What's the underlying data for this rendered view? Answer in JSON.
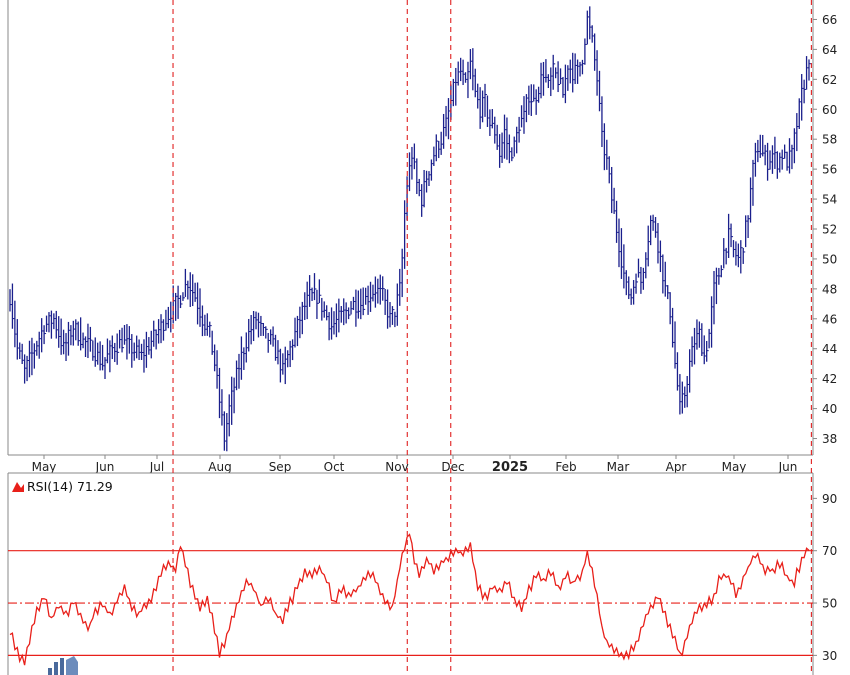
{
  "colors": {
    "price": "#1a1f8c",
    "rsi": "#e8201a",
    "marker": "#e02020",
    "frame": "#888888",
    "text": "#222222"
  },
  "chart_data": [
    {
      "type": "bar",
      "subtype": "ohlc-price",
      "y_ticks": [
        38,
        40,
        42,
        44,
        46,
        48,
        50,
        52,
        54,
        56,
        58,
        60,
        62,
        64,
        66
      ],
      "x_ticks": [
        "May",
        "Jun",
        "Jul",
        "Aug",
        "Sep",
        "Oct",
        "Nov",
        "Dec",
        "2025",
        "Feb",
        "Mar",
        "Apr",
        "May",
        "Jun"
      ],
      "x_ticks_bold": [
        false,
        false,
        false,
        false,
        false,
        false,
        false,
        false,
        true,
        false,
        false,
        false,
        false,
        false
      ],
      "ylim": [
        36.9,
        67.3
      ],
      "keypoints": [
        [
          0,
          47.5
        ],
        [
          3,
          44
        ],
        [
          6,
          42.5
        ],
        [
          10,
          44
        ],
        [
          14,
          45.5
        ],
        [
          18,
          46
        ],
        [
          22,
          44
        ],
        [
          26,
          45.5
        ],
        [
          30,
          44.5
        ],
        [
          34,
          44
        ],
        [
          38,
          43
        ],
        [
          42,
          44
        ],
        [
          46,
          44.5
        ],
        [
          50,
          44
        ],
        [
          54,
          43.5
        ],
        [
          58,
          44.5
        ],
        [
          62,
          45.5
        ],
        [
          66,
          46.5
        ],
        [
          70,
          47.5
        ],
        [
          73,
          48.5
        ],
        [
          76,
          47.5
        ],
        [
          79,
          46
        ],
        [
          82,
          45
        ],
        [
          84,
          43
        ],
        [
          86,
          40.5
        ],
        [
          88,
          38
        ],
        [
          90,
          40
        ],
        [
          92,
          41.5
        ],
        [
          95,
          43.5
        ],
        [
          98,
          45
        ],
        [
          101,
          46
        ],
        [
          104,
          45
        ],
        [
          107,
          44.5
        ],
        [
          110,
          43.5
        ],
        [
          112,
          42.5
        ],
        [
          114,
          43.5
        ],
        [
          117,
          45
        ],
        [
          120,
          46.5
        ],
        [
          123,
          47.5
        ],
        [
          126,
          47.5
        ],
        [
          129,
          46.5
        ],
        [
          132,
          45.5
        ],
        [
          135,
          46
        ],
        [
          138,
          46.5
        ],
        [
          141,
          47
        ],
        [
          144,
          47
        ],
        [
          147,
          47.5
        ],
        [
          150,
          48
        ],
        [
          153,
          47.5
        ],
        [
          156,
          46
        ],
        [
          158,
          46.5
        ],
        [
          160,
          48
        ],
        [
          161,
          50
        ],
        [
          162,
          53
        ],
        [
          163,
          55
        ],
        [
          165,
          57
        ],
        [
          167,
          55
        ],
        [
          169,
          54
        ],
        [
          171,
          55.5
        ],
        [
          173,
          56.5
        ],
        [
          175,
          57.5
        ],
        [
          177,
          58
        ],
        [
          179,
          59
        ],
        [
          181,
          60.5
        ],
        [
          183,
          62
        ],
        [
          185,
          62.5
        ],
        [
          187,
          61.5
        ],
        [
          189,
          63
        ],
        [
          191,
          61
        ],
        [
          193,
          60
        ],
        [
          195,
          60.5
        ],
        [
          197,
          59
        ],
        [
          199,
          58.5
        ],
        [
          201,
          57
        ],
        [
          203,
          58.5
        ],
        [
          205,
          57
        ],
        [
          207,
          57.5
        ],
        [
          209,
          59
        ],
        [
          211,
          59.5
        ],
        [
          213,
          61
        ],
        [
          215,
          60.5
        ],
        [
          217,
          61.5
        ],
        [
          219,
          62.5
        ],
        [
          221,
          61.5
        ],
        [
          223,
          62.5
        ],
        [
          225,
          62
        ],
        [
          227,
          61
        ],
        [
          229,
          63
        ],
        [
          231,
          62.5
        ],
        [
          233,
          62.5
        ],
        [
          235,
          63.5
        ],
        [
          237,
          66
        ],
        [
          239,
          64.5
        ],
        [
          241,
          62
        ],
        [
          243,
          58
        ],
        [
          245,
          56.5
        ],
        [
          247,
          54
        ],
        [
          249,
          52
        ],
        [
          251,
          50
        ],
        [
          253,
          48
        ],
        [
          255,
          47.5
        ],
        [
          257,
          49
        ],
        [
          259,
          48.5
        ],
        [
          261,
          50.5
        ],
        [
          263,
          52.5
        ],
        [
          265,
          52
        ],
        [
          267,
          50
        ],
        [
          269,
          48
        ],
        [
          271,
          46.5
        ],
        [
          273,
          43
        ],
        [
          275,
          40
        ],
        [
          277,
          41
        ],
        [
          279,
          43
        ],
        [
          281,
          44.5
        ],
        [
          283,
          45
        ],
        [
          285,
          43.5
        ],
        [
          287,
          45
        ],
        [
          289,
          48
        ],
        [
          291,
          49
        ],
        [
          293,
          50.5
        ],
        [
          295,
          51.5
        ],
        [
          297,
          50.5
        ],
        [
          299,
          50
        ],
        [
          301,
          51
        ],
        [
          303,
          53
        ],
        [
          305,
          56
        ],
        [
          307,
          57.5
        ],
        [
          309,
          57
        ],
        [
          311,
          56.5
        ],
        [
          313,
          57
        ],
        [
          315,
          56.5
        ],
        [
          317,
          57
        ],
        [
          319,
          56.5
        ],
        [
          321,
          57
        ],
        [
          323,
          59
        ],
        [
          325,
          61
        ],
        [
          327,
          62.5
        ],
        [
          328,
          63.5
        ]
      ]
    },
    {
      "type": "line",
      "subtype": "rsi",
      "ylim": [
        22.5,
        99.7
      ],
      "y_ticks": [
        30,
        50,
        70,
        90
      ],
      "reference_lines": [
        {
          "value": 70,
          "style": "solid"
        },
        {
          "value": 50,
          "style": "dash-dot"
        },
        {
          "value": 30,
          "style": "solid"
        }
      ],
      "keypoints": [
        [
          0,
          40
        ],
        [
          3,
          31
        ],
        [
          6,
          27
        ],
        [
          8,
          36
        ],
        [
          11,
          47
        ],
        [
          14,
          52
        ],
        [
          17,
          44
        ],
        [
          20,
          50
        ],
        [
          23,
          45
        ],
        [
          26,
          50
        ],
        [
          29,
          46
        ],
        [
          32,
          40
        ],
        [
          35,
          47
        ],
        [
          38,
          50
        ],
        [
          41,
          46
        ],
        [
          44,
          51
        ],
        [
          47,
          55
        ],
        [
          50,
          49
        ],
        [
          53,
          46
        ],
        [
          56,
          49
        ],
        [
          59,
          54
        ],
        [
          62,
          61
        ],
        [
          65,
          66
        ],
        [
          68,
          63
        ],
        [
          70,
          73
        ],
        [
          72,
          64
        ],
        [
          75,
          55
        ],
        [
          78,
          48
        ],
        [
          81,
          52
        ],
        [
          84,
          40
        ],
        [
          86,
          31
        ],
        [
          88,
          35
        ],
        [
          91,
          44
        ],
        [
          94,
          52
        ],
        [
          97,
          58
        ],
        [
          100,
          55
        ],
        [
          103,
          49
        ],
        [
          106,
          52
        ],
        [
          109,
          46
        ],
        [
          112,
          44
        ],
        [
          115,
          50
        ],
        [
          118,
          56
        ],
        [
          121,
          61
        ],
        [
          124,
          60
        ],
        [
          127,
          63
        ],
        [
          130,
          59
        ],
        [
          133,
          50
        ],
        [
          136,
          55
        ],
        [
          139,
          53
        ],
        [
          142,
          55
        ],
        [
          145,
          59
        ],
        [
          148,
          61
        ],
        [
          151,
          57
        ],
        [
          154,
          51
        ],
        [
          157,
          48
        ],
        [
          160,
          64
        ],
        [
          162,
          72
        ],
        [
          164,
          78
        ],
        [
          166,
          67
        ],
        [
          168,
          61
        ],
        [
          171,
          66
        ],
        [
          174,
          63
        ],
        [
          177,
          65
        ],
        [
          180,
          67
        ],
        [
          183,
          70
        ],
        [
          186,
          69
        ],
        [
          189,
          71
        ],
        [
          192,
          57
        ],
        [
          195,
          52
        ],
        [
          198,
          56
        ],
        [
          201,
          54
        ],
        [
          204,
          59
        ],
        [
          207,
          52
        ],
        [
          210,
          48
        ],
        [
          213,
          55
        ],
        [
          216,
          61
        ],
        [
          219,
          58
        ],
        [
          222,
          62
        ],
        [
          225,
          55
        ],
        [
          228,
          61
        ],
        [
          231,
          58
        ],
        [
          234,
          60
        ],
        [
          237,
          68
        ],
        [
          239,
          63
        ],
        [
          241,
          52
        ],
        [
          243,
          40
        ],
        [
          245,
          35
        ],
        [
          248,
          32
        ],
        [
          251,
          29
        ],
        [
          254,
          31
        ],
        [
          257,
          35
        ],
        [
          260,
          43
        ],
        [
          263,
          48
        ],
        [
          266,
          52
        ],
        [
          269,
          45
        ],
        [
          272,
          38
        ],
        [
          275,
          30
        ],
        [
          277,
          34
        ],
        [
          280,
          44
        ],
        [
          283,
          48
        ],
        [
          286,
          49
        ],
        [
          289,
          53
        ],
        [
          292,
          61
        ],
        [
          295,
          60
        ],
        [
          298,
          54
        ],
        [
          301,
          59
        ],
        [
          304,
          66
        ],
        [
          307,
          68
        ],
        [
          310,
          62
        ],
        [
          313,
          63
        ],
        [
          316,
          65
        ],
        [
          319,
          60
        ],
        [
          322,
          58
        ],
        [
          325,
          67
        ],
        [
          328,
          71
        ]
      ]
    }
  ],
  "rsi_label": "RSI(14) 71.29",
  "marker_lines": [
    0.205,
    0.496,
    0.55,
    0.998
  ],
  "footer_logo": "logo-icon"
}
